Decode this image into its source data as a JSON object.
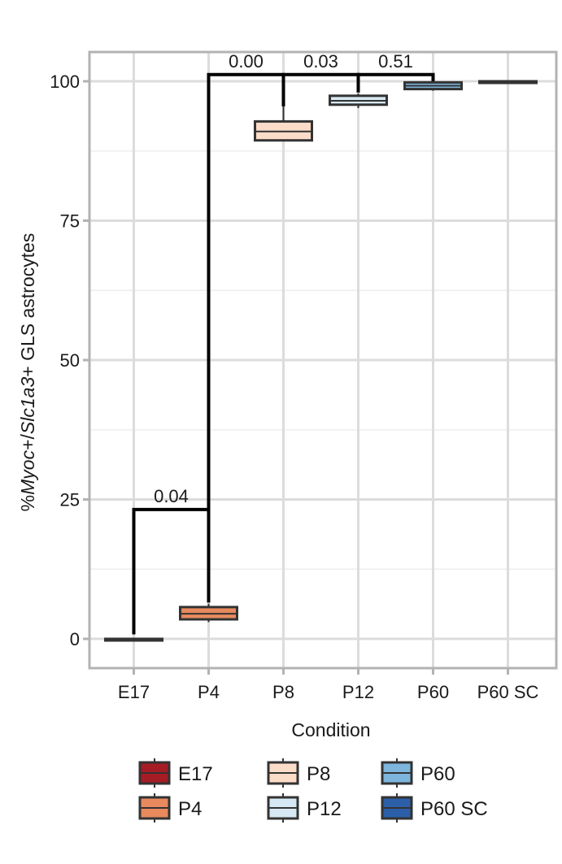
{
  "chart_data": {
    "type": "boxplot",
    "title": "",
    "xlabel": "Condition",
    "ylabel_parts": [
      {
        "text": "%",
        "italic": false
      },
      {
        "text": "Myoc",
        "italic": true
      },
      {
        "text": "+/",
        "italic": false
      },
      {
        "text": "Slc1a3",
        "italic": true
      },
      {
        "text": "+ GLS astrocytes",
        "italic": false
      }
    ],
    "ylim": [
      -5,
      105
    ],
    "yticks": [
      0,
      25,
      50,
      75,
      100
    ],
    "grid": true,
    "categories": [
      "E17",
      "P4",
      "P8",
      "P12",
      "P60",
      "P60 SC"
    ],
    "boxes": [
      {
        "category": "E17",
        "min": 0,
        "q1": 0,
        "median": 0,
        "q3": 0,
        "max": 0,
        "fill": "#A51C24"
      },
      {
        "category": "P4",
        "min": 3.0,
        "q1": 3.5,
        "median": 4.5,
        "q3": 5.7,
        "max": 6.3,
        "fill": "#E88A5E"
      },
      {
        "category": "P8",
        "min": 89.4,
        "q1": 89.4,
        "median": 91.0,
        "q3": 92.8,
        "max": 95.5,
        "fill": "#FBDCC8"
      },
      {
        "category": "P12",
        "min": 95.2,
        "q1": 95.8,
        "median": 96.5,
        "q3": 97.4,
        "max": 97.8,
        "fill": "#D6E8F3"
      },
      {
        "category": "P60",
        "min": 98.3,
        "q1": 98.6,
        "median": 99.2,
        "q3": 99.8,
        "max": 99.9,
        "fill": "#7EB5DC"
      },
      {
        "category": "P60 SC",
        "min": 99.9,
        "q1": 99.9,
        "median": 100,
        "q3": 100,
        "max": 100,
        "fill": "#2C5FA8"
      }
    ],
    "comparisons": [
      {
        "from": "E17",
        "to": "P4",
        "label": "0.04",
        "y": 23.2,
        "left_end": 0.8,
        "right_end": 6.5
      },
      {
        "from": "P4",
        "to": "P8",
        "label": "0.00",
        "y": 101.2,
        "left_end": 6.6,
        "right_end": 95.5
      },
      {
        "from": "P8",
        "to": "P12",
        "label": "0.03",
        "y": 101.2,
        "left_end": 96.0,
        "right_end": 98.0
      },
      {
        "from": "P12",
        "to": "P60",
        "label": "0.51",
        "y": 101.2,
        "left_end": 98.0,
        "right_end": 99.9
      }
    ],
    "legend": {
      "placement": "bottom",
      "entries": [
        {
          "label": "E17",
          "color": "#A51C24"
        },
        {
          "label": "P8",
          "color": "#FBDCC8"
        },
        {
          "label": "P60",
          "color": "#7EB5DC"
        },
        {
          "label": "P4",
          "color": "#E88A5E"
        },
        {
          "label": "P12",
          "color": "#D6E8F3"
        },
        {
          "label": "P60 SC",
          "color": "#2C5FA8"
        }
      ]
    },
    "colors": {
      "panel_border": "#b3b3b3",
      "grid_major": "#dcdcdc",
      "grid_minor": "#eeeeee",
      "outline": "#333333",
      "bracket": "#000000"
    }
  }
}
